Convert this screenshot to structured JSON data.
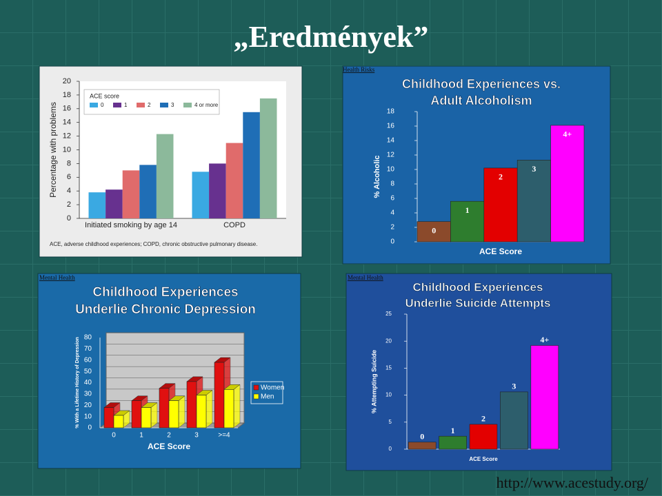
{
  "slide": {
    "title": "„Eredmények”",
    "url": "http://www.acestudy.org/"
  },
  "chart_data": [
    {
      "type": "bar",
      "ylabel": "Percentage with problems",
      "legend_title": "ACE score",
      "legend": "upper-left",
      "categories": [
        "Initiated smoking by age 14",
        "COPD"
      ],
      "series": [
        {
          "name": "0",
          "color": "#3aa9e2",
          "values": [
            3.8,
            6.8
          ]
        },
        {
          "name": "1",
          "color": "#67318f",
          "values": [
            4.2,
            8.0
          ]
        },
        {
          "name": "2",
          "color": "#e06b6b",
          "values": [
            7.0,
            11.0
          ]
        },
        {
          "name": "3",
          "color": "#1f6eb6",
          "values": [
            7.8,
            15.5
          ]
        },
        {
          "name": "4 or more",
          "color": "#8cb99b",
          "values": [
            12.3,
            17.5
          ]
        }
      ],
      "ylim": [
        0,
        20
      ],
      "yticks": [
        0,
        2,
        4,
        6,
        8,
        10,
        12,
        14,
        16,
        18,
        20
      ],
      "grid": false,
      "footnote": "ACE, adverse childhood experiences; COPD, chronic obstructive pulmonary disease."
    },
    {
      "type": "bar",
      "section": "Health Risks",
      "title": [
        "Childhood Experiences vs.",
        "Adult Alcoholism"
      ],
      "xlabel": "ACE Score",
      "ylabel": "% Alcoholic",
      "categories": [
        "0",
        "1",
        "2",
        "3",
        "4+"
      ],
      "values": [
        2.8,
        5.6,
        10.2,
        11.3,
        16.1
      ],
      "colors": [
        "#8b4a2b",
        "#2e7d2e",
        "#e30000",
        "#2d5e6c",
        "#ff00ff"
      ],
      "ylim": [
        0,
        18
      ],
      "yticks": [
        0,
        2,
        4,
        6,
        8,
        10,
        12,
        14,
        16,
        18
      ],
      "grid": false
    },
    {
      "type": "bar",
      "three_d": true,
      "section": "Mental Health",
      "title": [
        "Childhood Experiences",
        "Underlie Chronic Depression"
      ],
      "xlabel": "ACE Score",
      "ylabel": "% With a Lifetime History of Depression",
      "legend": "right",
      "categories": [
        "0",
        "1",
        "2",
        "3",
        ">=4"
      ],
      "series": [
        {
          "name": "Women",
          "color": "#e01010",
          "values": [
            18,
            24,
            35,
            41,
            58
          ]
        },
        {
          "name": "Men",
          "color": "#ffff00",
          "values": [
            11,
            18,
            24,
            29,
            34
          ]
        }
      ],
      "ylim": [
        0,
        80
      ],
      "yticks": [
        0,
        10,
        20,
        30,
        40,
        50,
        60,
        70,
        80
      ],
      "grid": true
    },
    {
      "type": "bar",
      "section": "Mental Health",
      "title": [
        "Childhood Experiences",
        "Underlie Suicide Attempts"
      ],
      "xlabel": "ACE Score",
      "ylabel": "% Attempting Suicide",
      "categories": [
        "0",
        "1",
        "2",
        "3",
        "4+"
      ],
      "values": [
        1.3,
        2.4,
        4.6,
        10.6,
        19.2
      ],
      "colors": [
        "#8b4a2b",
        "#2e7d2e",
        "#e30000",
        "#2d5e6c",
        "#ff00ff"
      ],
      "ylim": [
        0,
        25
      ],
      "yticks": [
        0,
        5,
        10,
        15,
        20,
        25
      ],
      "grid": false
    }
  ]
}
